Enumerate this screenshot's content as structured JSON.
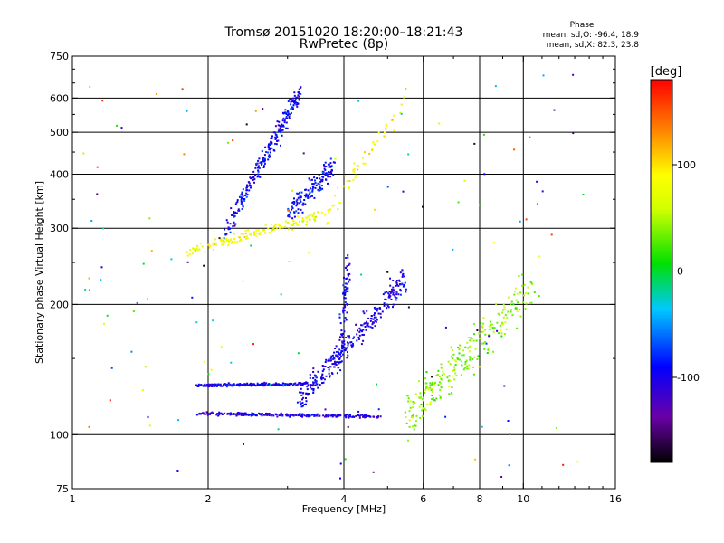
{
  "chart_data": {
    "type": "scatter",
    "title": "Tromsø 20151020 18:20:00–18:21:43",
    "subtitle": "RwPretec (8p)",
    "xlabel": "Frequency [MHz]",
    "ylabel": "Stationary phase Virtual Height [km]",
    "x_scale": "log",
    "y_scale": "log",
    "xlim": [
      1,
      16
    ],
    "ylim": [
      75,
      750
    ],
    "x_ticks": [
      1,
      2,
      4,
      6,
      8,
      10,
      16
    ],
    "x_tick_labels": [
      "1",
      "2",
      "4",
      "6",
      "8",
      "10",
      "16"
    ],
    "y_ticks": [
      75,
      100,
      200,
      300,
      400,
      500,
      600,
      750
    ],
    "y_tick_labels": [
      "75",
      "100",
      "200",
      "300",
      "400",
      "500",
      "600",
      "750"
    ],
    "grid": true,
    "stats": {
      "header": "Phase",
      "line_o": "mean, sd,O: -96.4, 18.9",
      "line_x": "mean, sd,X: 82.3, 23.8"
    },
    "colorbar": {
      "label": "[deg]",
      "min": -180,
      "max": 180,
      "ticks": [
        100,
        0,
        -100
      ],
      "tick_labels": [
        "100",
        "0",
        "-100"
      ]
    },
    "clusters": [
      {
        "trace": "O-mode F2 trace",
        "x_start": 2.2,
        "x_end": 3.2,
        "y_start": 300,
        "y_end": 620,
        "phase": -95,
        "spread": 0.08,
        "count": 260
      },
      {
        "trace": "X-mode F2 trace",
        "x_start": 1.8,
        "x_end": 3.5,
        "y_start": 265,
        "y_end": 320,
        "phase": 80,
        "spread": 0.04,
        "count": 150
      },
      {
        "trace": "O-mode F2 upper",
        "x_start": 3.0,
        "x_end": 3.8,
        "y_start": 320,
        "y_end": 420,
        "phase": -90,
        "spread": 0.08,
        "count": 140
      },
      {
        "trace": "Es layer trace",
        "x_start": 1.9,
        "x_end": 4.8,
        "y_start": 112,
        "y_end": 110,
        "phase": -105,
        "spread": 0.012,
        "count": 260
      },
      {
        "trace": "E layer trace",
        "x_start": 1.9,
        "x_end": 3.3,
        "y_start": 130,
        "y_end": 131,
        "phase": -100,
        "spread": 0.012,
        "count": 200
      },
      {
        "trace": "F1 cusp",
        "x_start": 3.2,
        "x_end": 5.5,
        "y_start": 120,
        "y_end": 230,
        "phase": -100,
        "spread": 0.1,
        "count": 300
      },
      {
        "trace": "F1 upper",
        "x_start": 3.9,
        "x_end": 4.1,
        "y_start": 140,
        "y_end": 250,
        "phase": -95,
        "spread": 0.12,
        "count": 80
      },
      {
        "trace": "X-mode upper",
        "x_start": 3.5,
        "x_end": 5.5,
        "y_start": 300,
        "y_end": 600,
        "phase": 90,
        "spread": 0.08,
        "count": 60
      },
      {
        "trace": "high frequency spread",
        "x_start": 5.5,
        "x_end": 10.5,
        "y_start": 110,
        "y_end": 220,
        "phase": 40,
        "spread": 0.18,
        "count": 260
      },
      {
        "trace": "background noise",
        "x_start": 1.0,
        "x_end": 14.0,
        "y_start": 78,
        "y_end": 700,
        "phase": 0,
        "spread": 1.0,
        "count": 140
      }
    ]
  }
}
